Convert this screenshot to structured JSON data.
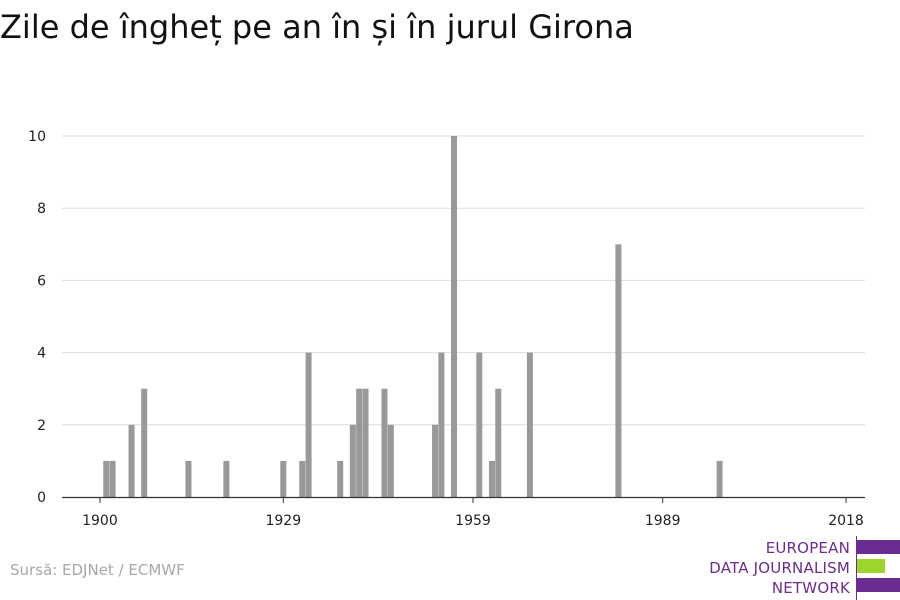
{
  "title": "Zile de îngheț pe an în și în jurul Girona",
  "source": "Sursă: EDJNet / ECMWF",
  "logo": {
    "lines": [
      "EUROPEAN",
      "DATA JOURNALISM",
      "NETWORK"
    ],
    "colors": [
      "#6a2c91",
      "#9ed52a",
      "#6a2c91"
    ]
  },
  "chart_data": {
    "type": "bar",
    "title": "Zile de îngheț pe an în și în jurul Girona",
    "xlabel": "",
    "ylabel": "",
    "xlim": [
      1894,
      2021
    ],
    "ylim": [
      0,
      10
    ],
    "x_ticks": [
      1900,
      1929,
      1959,
      1989,
      2018
    ],
    "y_ticks": [
      0,
      2,
      4,
      6,
      8,
      10
    ],
    "grid": true,
    "bar_color": "#999999",
    "points": [
      {
        "x": 1901,
        "y": 1
      },
      {
        "x": 1902,
        "y": 1
      },
      {
        "x": 1905,
        "y": 2
      },
      {
        "x": 1907,
        "y": 3
      },
      {
        "x": 1914,
        "y": 1
      },
      {
        "x": 1920,
        "y": 1
      },
      {
        "x": 1929,
        "y": 1
      },
      {
        "x": 1932,
        "y": 1
      },
      {
        "x": 1933,
        "y": 4
      },
      {
        "x": 1938,
        "y": 1
      },
      {
        "x": 1940,
        "y": 2
      },
      {
        "x": 1941,
        "y": 3
      },
      {
        "x": 1942,
        "y": 3
      },
      {
        "x": 1945,
        "y": 3
      },
      {
        "x": 1946,
        "y": 2
      },
      {
        "x": 1953,
        "y": 2
      },
      {
        "x": 1954,
        "y": 4
      },
      {
        "x": 1956,
        "y": 10
      },
      {
        "x": 1960,
        "y": 4
      },
      {
        "x": 1962,
        "y": 1
      },
      {
        "x": 1963,
        "y": 3
      },
      {
        "x": 1968,
        "y": 4
      },
      {
        "x": 1982,
        "y": 7
      },
      {
        "x": 1998,
        "y": 1
      }
    ]
  }
}
